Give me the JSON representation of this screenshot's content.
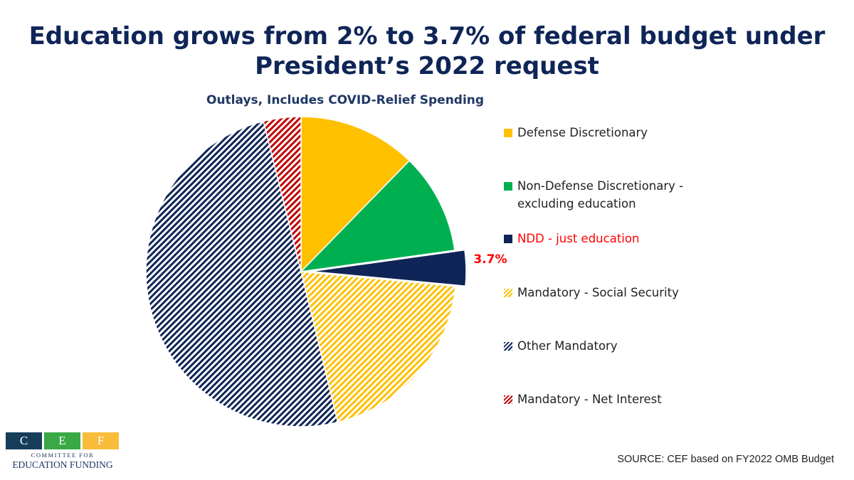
{
  "title_lines": [
    "Education grows from 2% to 3.7% of federal budget under",
    "President’s 2022 request"
  ],
  "source": "SOURCE: CEF based on FY2022 OMB Budget",
  "logo": {
    "letters": [
      "C",
      "E",
      "F"
    ],
    "colors": [
      "#163e5a",
      "#3aa845",
      "#f9bd3b"
    ],
    "line1": "COMMITTEE FOR",
    "line2": "EDUCATION FUNDING"
  },
  "chart_data": {
    "type": "pie",
    "title": "Outlays, Includes COVID-Relief Spending",
    "start_angle_deg": 0,
    "direction": "clockwise",
    "slices": [
      {
        "name": "Defense Discretionary",
        "value": 12.3,
        "color": "#ffc000",
        "pattern": "solid",
        "label_color": "#222222"
      },
      {
        "name": "Non-Defense Discretionary - excluding education",
        "value": 10.5,
        "color": "#00b050",
        "pattern": "solid",
        "label_color": "#222222"
      },
      {
        "name": "NDD - just education",
        "value": 3.7,
        "color": "#0f2557",
        "pattern": "solid",
        "label_color": "#ff0000",
        "exploded": true,
        "data_label": "3.7%"
      },
      {
        "name": "Mandatory - Social Security",
        "value": 19.7,
        "color": "#ffc000",
        "pattern": "hatch",
        "label_color": "#222222"
      },
      {
        "name": "Other Mandatory",
        "value": 49.9,
        "color": "#0f2557",
        "pattern": "hatch",
        "label_color": "#222222"
      },
      {
        "name": "Mandatory - Net Interest",
        "value": 3.9,
        "color": "#c00000",
        "pattern": "hatch",
        "label_color": "#222222"
      }
    ]
  }
}
